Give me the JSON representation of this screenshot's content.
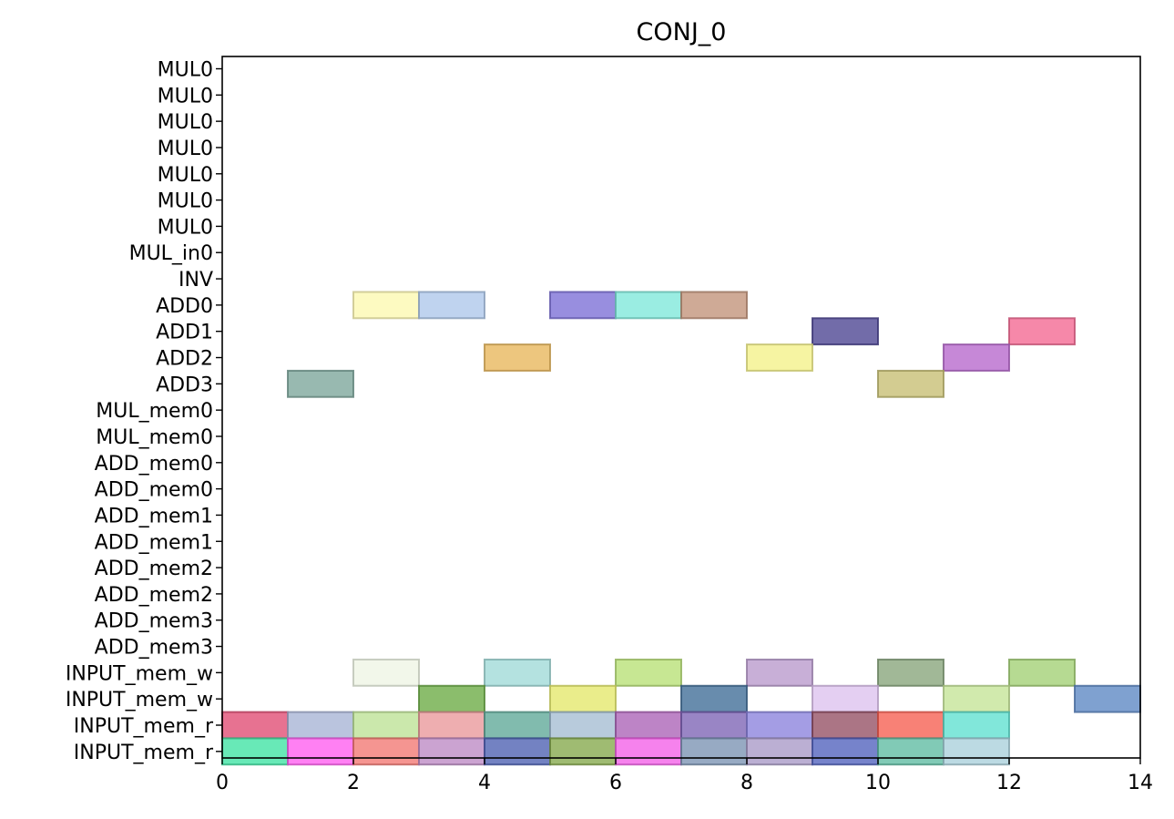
{
  "chart_data": {
    "type": "gantt",
    "title": "CONJ_0",
    "xlabel": "",
    "ylabel": "",
    "xlim": [
      0,
      14
    ],
    "xticks": [
      0,
      2,
      4,
      6,
      8,
      10,
      12,
      14
    ],
    "grid": false,
    "rows": [
      "MUL0",
      "MUL0",
      "MUL0",
      "MUL0",
      "MUL0",
      "MUL0",
      "MUL0",
      "MUL_in0",
      "INV",
      "ADD0",
      "ADD1",
      "ADD2",
      "ADD3",
      "MUL_mem0",
      "MUL_mem0",
      "ADD_mem0",
      "ADD_mem0",
      "ADD_mem1",
      "ADD_mem1",
      "ADD_mem2",
      "ADD_mem2",
      "ADD_mem3",
      "ADD_mem3",
      "INPUT_mem_w",
      "INPUT_mem_w",
      "INPUT_mem_r",
      "INPUT_mem_r"
    ],
    "tasks": [
      {
        "row": 9,
        "start": 2,
        "end": 3,
        "color": "#fdf8b0"
      },
      {
        "row": 9,
        "start": 3,
        "end": 4,
        "color": "#adc7ea"
      },
      {
        "row": 9,
        "start": 5,
        "end": 6,
        "color": "#7b6ed6"
      },
      {
        "row": 9,
        "start": 6,
        "end": 7,
        "color": "#7ee8da"
      },
      {
        "row": 9,
        "start": 7,
        "end": 8,
        "color": "#c29279"
      },
      {
        "row": 10,
        "start": 9,
        "end": 10,
        "color": "#4a4291"
      },
      {
        "row": 10,
        "start": 12,
        "end": 13,
        "color": "#f36791"
      },
      {
        "row": 11,
        "start": 4,
        "end": 5,
        "color": "#e8b65a"
      },
      {
        "row": 11,
        "start": 8,
        "end": 9,
        "color": "#f4f188"
      },
      {
        "row": 11,
        "start": 11,
        "end": 12,
        "color": "#b667cc"
      },
      {
        "row": 12,
        "start": 1,
        "end": 2,
        "color": "#7ba59a"
      },
      {
        "row": 12,
        "start": 10,
        "end": 11,
        "color": "#c6be72"
      },
      {
        "row": 23,
        "start": 2,
        "end": 3,
        "color": "#eef5e4"
      },
      {
        "row": 23,
        "start": 4,
        "end": 5,
        "color": "#9fdad7"
      },
      {
        "row": 23,
        "start": 6,
        "end": 7,
        "color": "#b7e074"
      },
      {
        "row": 23,
        "start": 8,
        "end": 9,
        "color": "#b898cc"
      },
      {
        "row": 23,
        "start": 10,
        "end": 11,
        "color": "#86a47a"
      },
      {
        "row": 23,
        "start": 12,
        "end": 13,
        "color": "#a1cf73"
      },
      {
        "row": 24,
        "start": 3,
        "end": 4,
        "color": "#6aaa43"
      },
      {
        "row": 24,
        "start": 5,
        "end": 6,
        "color": "#e4e86a"
      },
      {
        "row": 24,
        "start": 7,
        "end": 8,
        "color": "#3e6b96"
      },
      {
        "row": 24,
        "start": 9,
        "end": 10,
        "color": "#dcc1ee"
      },
      {
        "row": 24,
        "start": 11,
        "end": 12,
        "color": "#c4e496"
      },
      {
        "row": 24,
        "start": 13,
        "end": 14,
        "color": "#5b86c3"
      },
      {
        "row": 25,
        "start": 0,
        "end": 1,
        "color": "#e04a72"
      },
      {
        "row": 25,
        "start": 1,
        "end": 2,
        "color": "#a7b3d5"
      },
      {
        "row": 25,
        "start": 2,
        "end": 3,
        "color": "#bde195"
      },
      {
        "row": 25,
        "start": 3,
        "end": 4,
        "color": "#e9979a"
      },
      {
        "row": 25,
        "start": 4,
        "end": 5,
        "color": "#5ea897"
      },
      {
        "row": 25,
        "start": 5,
        "end": 6,
        "color": "#a4bcd2"
      },
      {
        "row": 25,
        "start": 6,
        "end": 7,
        "color": "#ab62b6"
      },
      {
        "row": 25,
        "start": 7,
        "end": 8,
        "color": "#7c63b5"
      },
      {
        "row": 25,
        "start": 8,
        "end": 9,
        "color": "#8a82dc"
      },
      {
        "row": 25,
        "start": 9,
        "end": 10,
        "color": "#934e63"
      },
      {
        "row": 25,
        "start": 10,
        "end": 11,
        "color": "#f65d4f"
      },
      {
        "row": 25,
        "start": 11,
        "end": 12,
        "color": "#5de0d0"
      },
      {
        "row": 26,
        "start": 0,
        "end": 1,
        "color": "#3ee3a3"
      },
      {
        "row": 26,
        "start": 1,
        "end": 2,
        "color": "#ff5cf0"
      },
      {
        "row": 26,
        "start": 2,
        "end": 3,
        "color": "#f27772"
      },
      {
        "row": 26,
        "start": 3,
        "end": 4,
        "color": "#bd89c4"
      },
      {
        "row": 26,
        "start": 4,
        "end": 5,
        "color": "#4b5fb1"
      },
      {
        "row": 26,
        "start": 5,
        "end": 6,
        "color": "#84a84a"
      },
      {
        "row": 26,
        "start": 6,
        "end": 7,
        "color": "#f35fe8"
      },
      {
        "row": 26,
        "start": 7,
        "end": 8,
        "color": "#7a92b2"
      },
      {
        "row": 26,
        "start": 8,
        "end": 9,
        "color": "#a899c6"
      },
      {
        "row": 26,
        "start": 9,
        "end": 10,
        "color": "#4f60bc"
      },
      {
        "row": 26,
        "start": 10,
        "end": 11,
        "color": "#5dbba1"
      },
      {
        "row": 26,
        "start": 11,
        "end": 12,
        "color": "#a9d0db"
      }
    ]
  }
}
